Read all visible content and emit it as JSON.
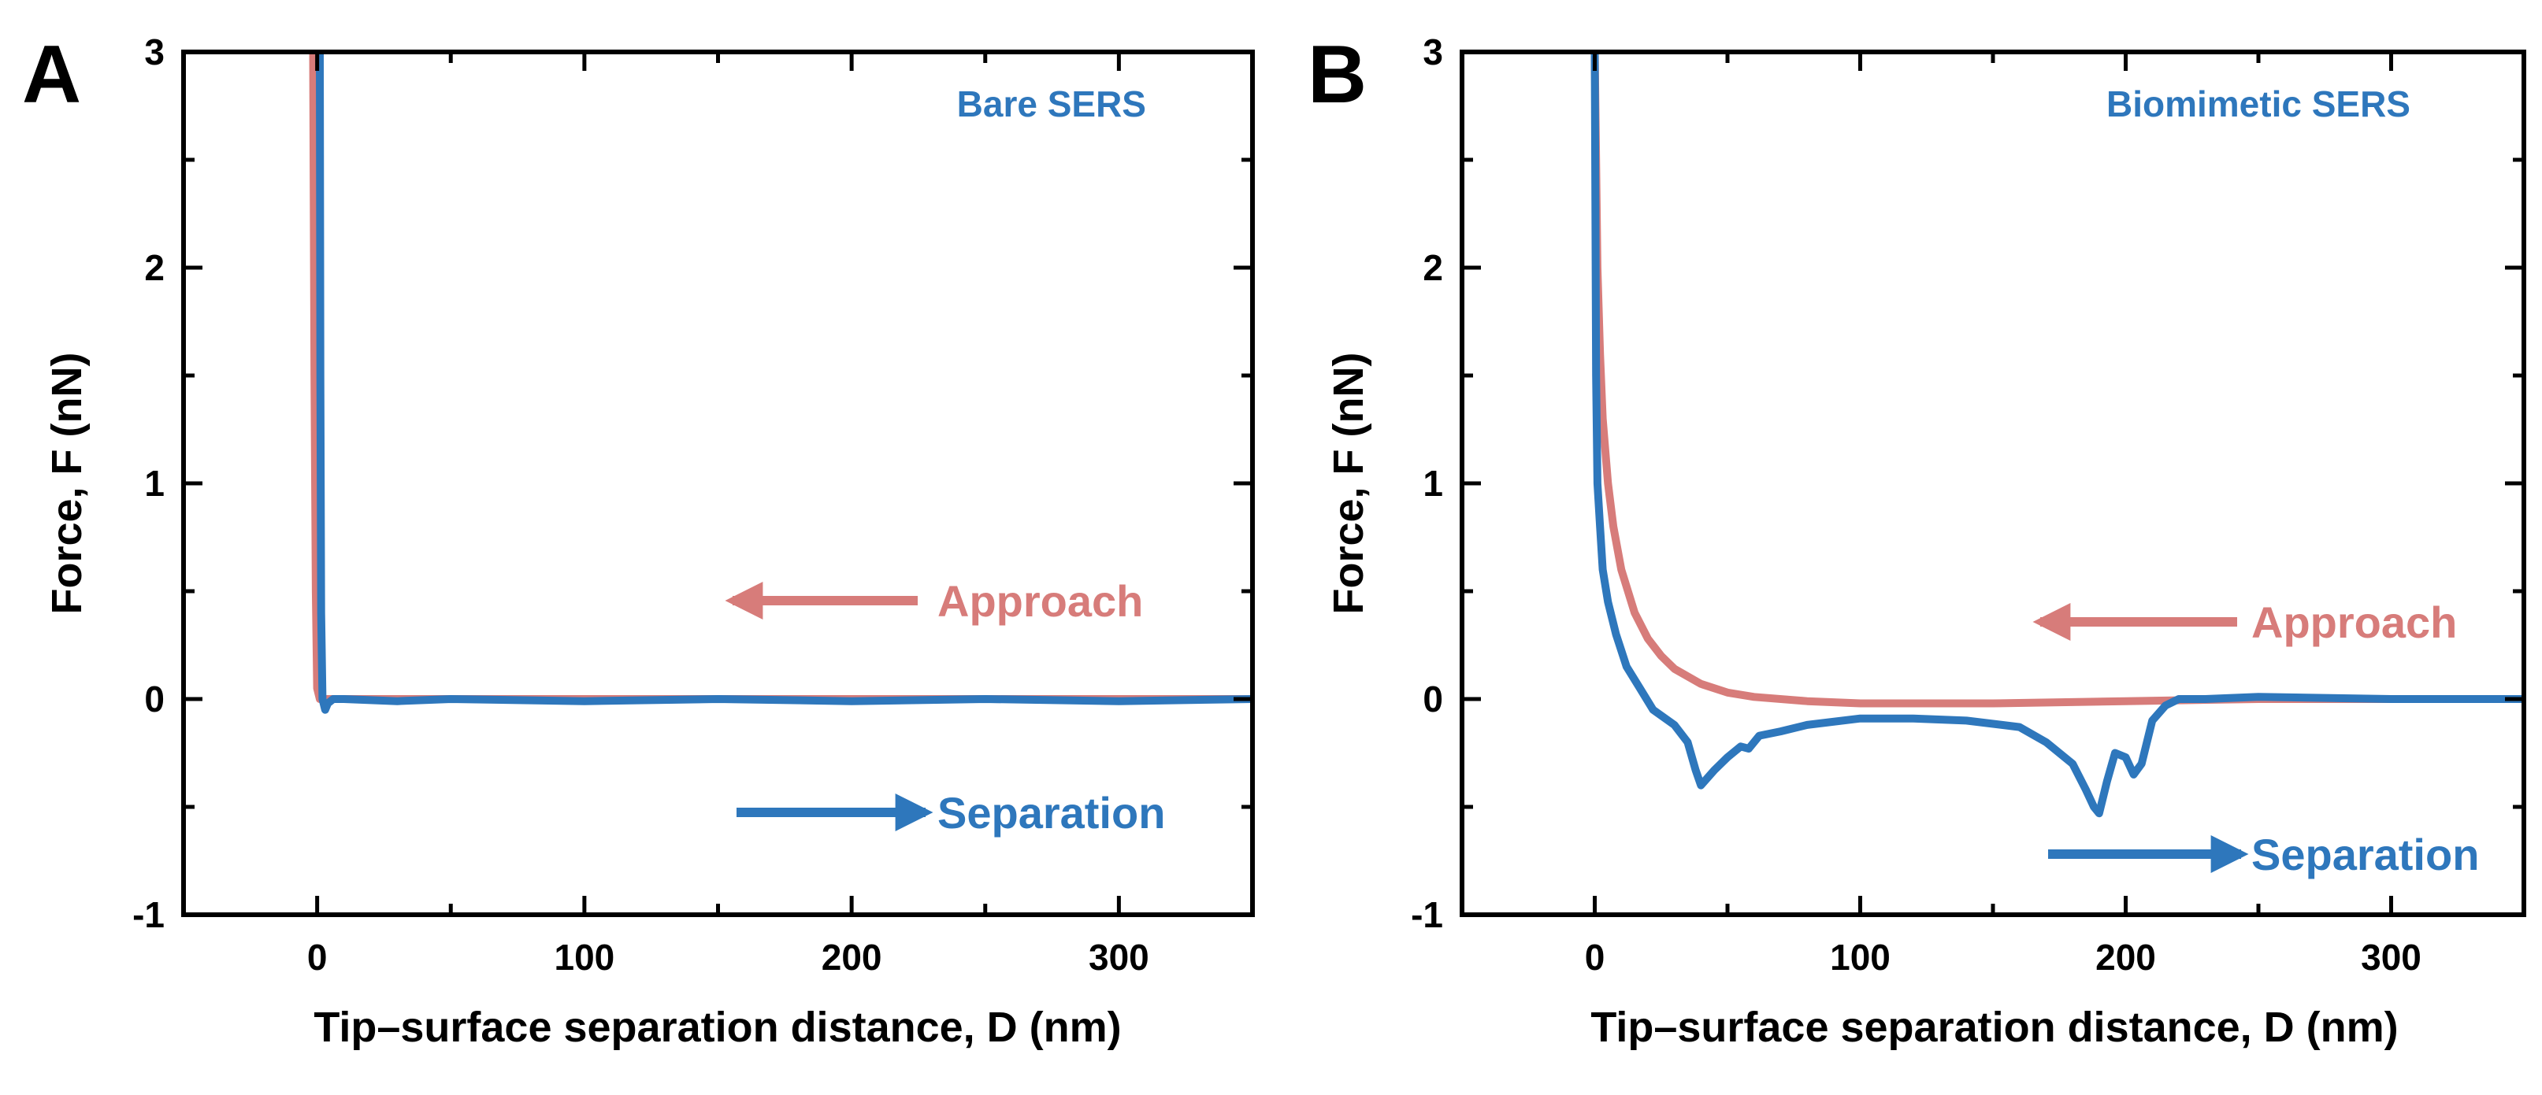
{
  "colors": {
    "approach": "#d77c7a",
    "separation": "#2e77bc",
    "axis": "#000000"
  },
  "chart_data": [
    {
      "type": "line",
      "panel_label": "A",
      "title": "Bare SERS",
      "xlabel": "Tip–surface separation distance, D (nm)",
      "ylabel": "Force, F (nN)",
      "xlim": [
        -50,
        350
      ],
      "ylim": [
        -1,
        3
      ],
      "xticks": [
        0,
        100,
        200,
        300
      ],
      "yticks": [
        -1,
        0,
        1,
        2,
        3
      ],
      "xtick_labels": [
        "0",
        "100",
        "200",
        "300"
      ],
      "ytick_labels": [
        "-1",
        "0",
        "1",
        "2",
        "3"
      ],
      "grid": false,
      "annotations": [
        {
          "text": "Approach",
          "direction": "left",
          "color": "#d77c7a"
        },
        {
          "text": "Separation",
          "direction": "right",
          "color": "#2e77bc"
        }
      ],
      "series": [
        {
          "name": "Approach",
          "color": "#d77c7a",
          "x": [
            -1.5,
            -1,
            -0.5,
            0,
            1,
            3,
            10,
            50,
            100,
            150,
            200,
            250,
            300,
            350
          ],
          "y": [
            3.0,
            1.5,
            0.5,
            0.05,
            0.0,
            0.0,
            0.0,
            0.0,
            0.0,
            0.0,
            0.0,
            0.0,
            0.0,
            0.0
          ]
        },
        {
          "name": "Separation",
          "color": "#2e77bc",
          "x": [
            1,
            1.2,
            1.5,
            2,
            3,
            4,
            6,
            10,
            30,
            50,
            100,
            150,
            200,
            250,
            300,
            350
          ],
          "y": [
            3.0,
            1.5,
            0.4,
            0.0,
            -0.05,
            -0.02,
            0.0,
            0.0,
            -0.01,
            0.0,
            -0.01,
            0.0,
            -0.01,
            0.0,
            -0.01,
            0.0
          ]
        }
      ]
    },
    {
      "type": "line",
      "panel_label": "B",
      "title": "Biomimetic SERS",
      "xlabel": "Tip–surface separation distance, D (nm)",
      "ylabel": "Force, F (nN)",
      "xlim": [
        -50,
        350
      ],
      "ylim": [
        -1,
        3
      ],
      "xticks": [
        0,
        100,
        200,
        300
      ],
      "yticks": [
        -1,
        0,
        1,
        2,
        3
      ],
      "xtick_labels": [
        "0",
        "100",
        "200",
        "300"
      ],
      "ytick_labels": [
        "-1",
        "0",
        "1",
        "2",
        "3"
      ],
      "grid": false,
      "annotations": [
        {
          "text": "Approach",
          "direction": "left",
          "color": "#d77c7a"
        },
        {
          "text": "Separation",
          "direction": "right",
          "color": "#2e77bc"
        }
      ],
      "series": [
        {
          "name": "Approach",
          "color": "#d77c7a",
          "x": [
            0,
            1,
            2,
            3,
            5,
            7,
            10,
            15,
            20,
            25,
            30,
            40,
            50,
            60,
            80,
            100,
            150,
            200,
            250,
            300,
            350
          ],
          "y": [
            3.0,
            2.0,
            1.6,
            1.3,
            1.0,
            0.8,
            0.6,
            0.4,
            0.28,
            0.2,
            0.14,
            0.07,
            0.03,
            0.01,
            -0.01,
            -0.02,
            -0.02,
            -0.01,
            0.0,
            0.0,
            0.0
          ]
        },
        {
          "name": "Separation",
          "color": "#2e77bc",
          "x": [
            0,
            0.5,
            1,
            2,
            3,
            5,
            8,
            12,
            17,
            22,
            30,
            35,
            38,
            40,
            45,
            50,
            55,
            58,
            62,
            70,
            80,
            100,
            120,
            140,
            160,
            170,
            180,
            185,
            188,
            190,
            193,
            196,
            200,
            203,
            206,
            210,
            215,
            220,
            230,
            250,
            300,
            350
          ],
          "y": [
            3.0,
            1.5,
            1.0,
            0.8,
            0.6,
            0.45,
            0.3,
            0.15,
            0.05,
            -0.05,
            -0.12,
            -0.2,
            -0.33,
            -0.4,
            -0.33,
            -0.27,
            -0.22,
            -0.23,
            -0.17,
            -0.15,
            -0.12,
            -0.09,
            -0.09,
            -0.1,
            -0.13,
            -0.2,
            -0.3,
            -0.42,
            -0.5,
            -0.53,
            -0.38,
            -0.25,
            -0.27,
            -0.35,
            -0.3,
            -0.1,
            -0.03,
            0.0,
            0.0,
            0.01,
            0.0,
            0.0
          ]
        }
      ]
    }
  ]
}
